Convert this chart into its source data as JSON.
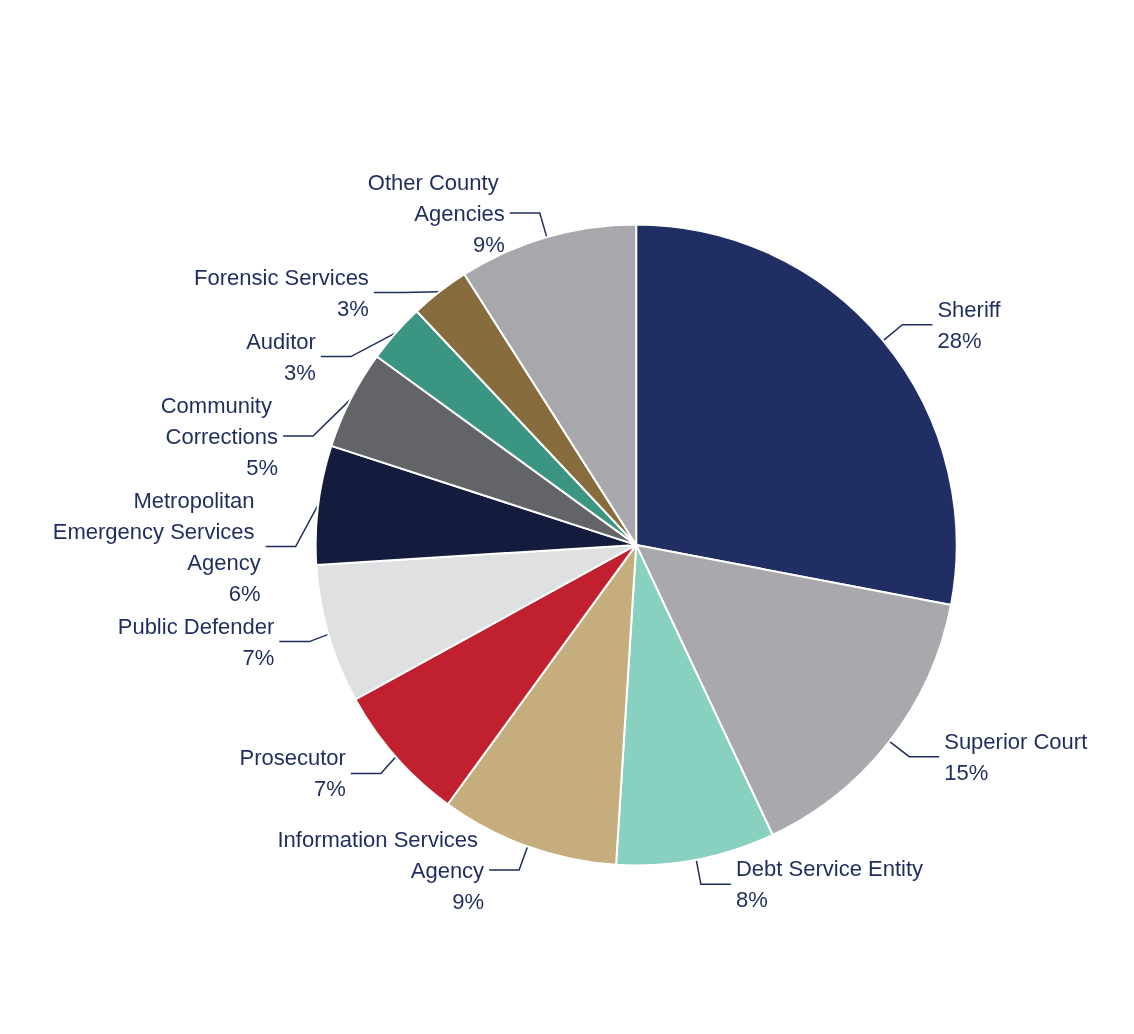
{
  "chart_data": {
    "type": "pie",
    "categories": [
      "Sheriff",
      "Superior Court",
      "Debt Service Entity",
      "Information Services Agency",
      "Prosecutor",
      "Public Defender",
      "Metropolitan Emergency Services Agency",
      "Community Corrections",
      "Auditor",
      "Forensic Services",
      "Other County Agencies"
    ],
    "values": [
      28,
      15,
      8,
      9,
      7,
      7,
      6,
      5,
      3,
      3,
      9
    ],
    "value_labels": [
      "28%",
      "15%",
      "8%",
      "9%",
      "7%",
      "7%",
      "6%",
      "5%",
      "3%",
      "3%",
      "9%"
    ],
    "colors": [
      "#202e63",
      "#a9a9ad",
      "#88d0c0",
      "#c5ad7d",
      "#c1202f",
      "#dfe0e2",
      "#141c3d",
      "#636468",
      "#3a9582",
      "#876d3d",
      "#a8a7ab"
    ],
    "legend": false
  }
}
